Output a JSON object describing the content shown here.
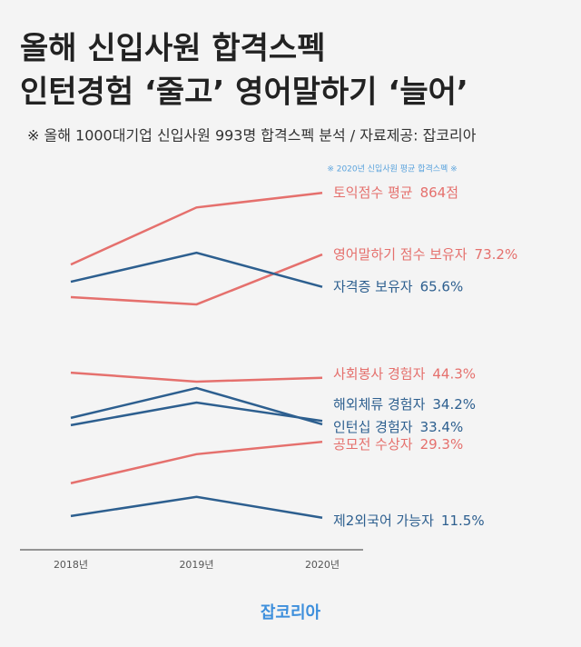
{
  "chart_data": {
    "type": "line",
    "title": [
      "올해 신입사원 합격스펙",
      "인턴경험 ‘줄고’ 영어말하기 ‘늘어’"
    ],
    "subtitle": "※ 올해 1000대기업 신입사원 993명 합격스펙 분석 / 자료제공: 잡코리아",
    "note": "※ 2020년 신입사원 평균 합격스펙 ※",
    "footer": "잡코리아",
    "categories": [
      "2018년",
      "2019년",
      "2020년"
    ],
    "ylim": [
      4,
      94.5
    ],
    "y2lim": [
      620,
      884
    ],
    "series": [
      {
        "name": "토익점수  평균",
        "color": "#e5706d",
        "axis": "y2",
        "values": [
          815,
          854,
          864
        ],
        "value_labels": [
          null,
          null,
          "864점"
        ]
      },
      {
        "name": "영어말하기 점수 보유자",
        "color": "#e5706d",
        "values": [
          63.2,
          61.5,
          73.2
        ],
        "value_labels": [
          null,
          null,
          "73.2%"
        ]
      },
      {
        "name": "자격증 보유자",
        "color": "#2d5f8f",
        "values": [
          66.8,
          73.6,
          65.6
        ],
        "value_labels": [
          null,
          null,
          "65.6%"
        ]
      },
      {
        "name": "사회봉사 경험자",
        "color": "#e5706d",
        "values": [
          45.5,
          43.4,
          44.3
        ],
        "value_labels": [
          null,
          null,
          "44.3%"
        ]
      },
      {
        "name": "해외체류 경험자",
        "color": "#2d5f8f",
        "values": [
          33.2,
          38.5,
          34.2
        ],
        "value_labels": [
          null,
          null,
          "34.2%"
        ]
      },
      {
        "name": "인턴십 경험자",
        "color": "#2d5f8f",
        "values": [
          34.9,
          41.9,
          33.4
        ],
        "value_labels": [
          null,
          null,
          "33.4%"
        ]
      },
      {
        "name": "공모전 수상자",
        "color": "#e5706d",
        "values": [
          19.6,
          26.4,
          29.3
        ],
        "value_labels": [
          null,
          null,
          "29.3%"
        ]
      },
      {
        "name": "제2외국어 가능자",
        "color": "#2d5f8f",
        "values": [
          11.9,
          16.4,
          11.5
        ],
        "value_labels": [
          null,
          null,
          "11.5%"
        ]
      }
    ]
  }
}
